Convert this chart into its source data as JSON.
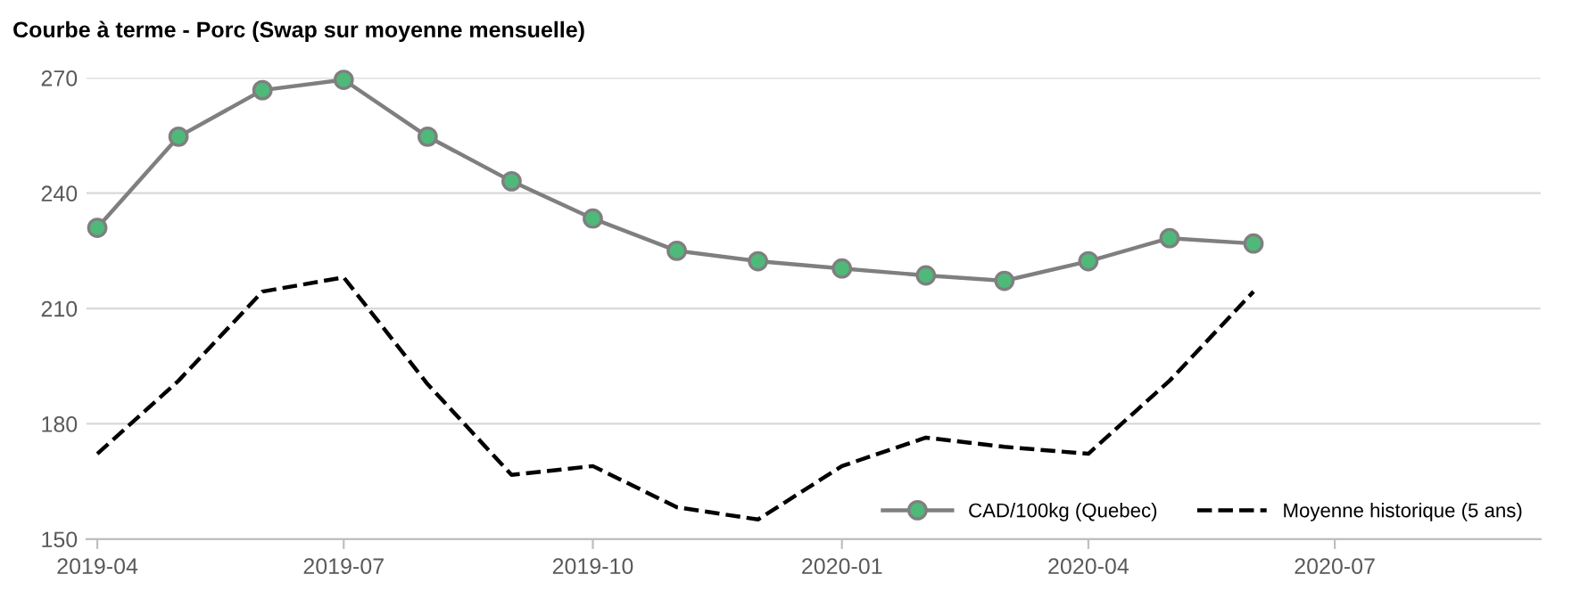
{
  "chart_data": {
    "type": "line",
    "title": "Courbe à terme - Porc (Swap sur moyenne mensuelle)",
    "x": [
      "2019-04",
      "2019-05",
      "2019-06",
      "2019-07",
      "2019-08",
      "2019-09",
      "2019-10",
      "2019-11",
      "2019-12",
      "2020-01",
      "2020-02",
      "2020-03",
      "2020-04",
      "2020-05",
      "2020-06"
    ],
    "series": [
      {
        "name": "CAD/100kg (Quebec)",
        "color": "#7f7f7f",
        "marker": "circle",
        "line_style": "solid",
        "values": [
          231,
          254.7,
          266.8,
          269.5,
          254.7,
          243.1,
          233.4,
          225,
          222.3,
          220.4,
          218.6,
          217.2,
          222.3,
          228.3,
          226.9
        ]
      },
      {
        "name": "Moyenne historique (5 ans)",
        "color": "#000000",
        "marker": "none",
        "line_style": "dashed",
        "values": [
          172.2,
          191.2,
          214.4,
          218.1,
          190.3,
          166.7,
          169,
          158.3,
          155.1,
          169,
          176.4,
          174,
          172.2,
          191.2,
          214.4
        ]
      }
    ],
    "xlim": [
      "2019-03-28",
      "2020-09-15"
    ],
    "xticks": [
      "2019-04",
      "2019-07",
      "2019-10",
      "2020-01",
      "2020-04",
      "2020-07"
    ],
    "ylim": [
      150,
      270
    ],
    "yticks": [
      150,
      180,
      210,
      240,
      270
    ],
    "grid": "y",
    "legend": "bottom right"
  }
}
